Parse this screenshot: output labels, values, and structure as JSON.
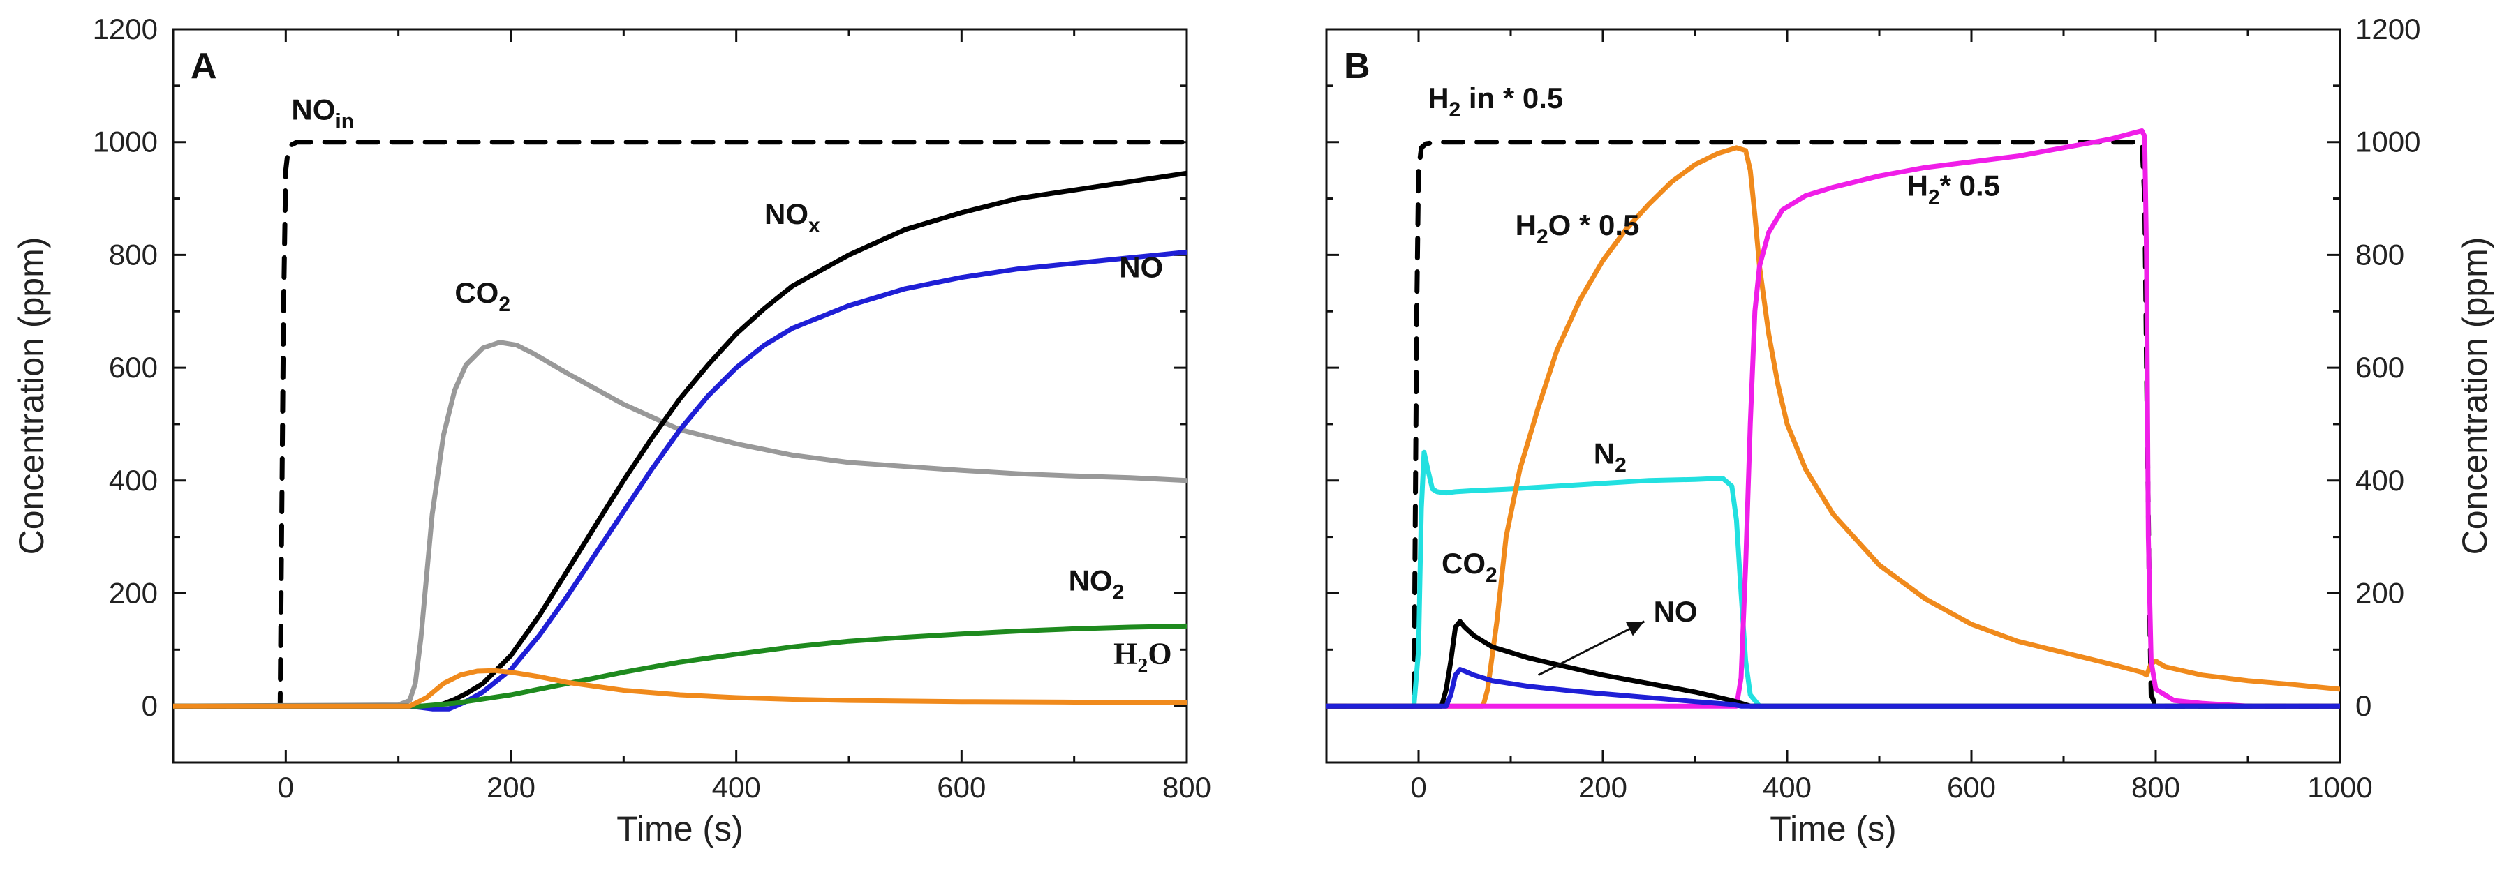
{
  "chart_data": [
    {
      "type": "line",
      "panel": "A",
      "xlabel": "Time (s)",
      "ylabel": "Concentration (ppm)",
      "xlim": [
        -100,
        800
      ],
      "ylim": [
        -100,
        1200
      ],
      "xticks": [
        0,
        200,
        400,
        600,
        800
      ],
      "yticks": [
        0,
        200,
        400,
        600,
        800,
        1000,
        1200
      ],
      "ylabel_side": "left",
      "series": [
        {
          "name": "NO_in",
          "color": "#000000",
          "dashed": true,
          "x": [
            -100,
            -5,
            -2,
            0,
            2,
            5,
            10,
            20,
            50,
            800
          ],
          "y": [
            0,
            0,
            700,
            950,
            985,
            995,
            1000,
            1000,
            1000,
            1000
          ]
        },
        {
          "name": "CO2",
          "color": "#999999",
          "dashed": false,
          "x": [
            -100,
            100,
            110,
            115,
            120,
            125,
            130,
            140,
            150,
            160,
            175,
            190,
            205,
            220,
            250,
            300,
            350,
            400,
            450,
            500,
            550,
            600,
            650,
            700,
            750,
            800
          ],
          "y": [
            0,
            2,
            10,
            40,
            120,
            230,
            340,
            480,
            560,
            605,
            635,
            645,
            640,
            625,
            590,
            535,
            490,
            465,
            445,
            432,
            425,
            418,
            412,
            408,
            405,
            400
          ]
        },
        {
          "name": "NOx",
          "color": "#000000",
          "dashed": false,
          "x": [
            -100,
            110,
            130,
            140,
            150,
            160,
            175,
            200,
            225,
            250,
            275,
            300,
            325,
            350,
            375,
            400,
            425,
            450,
            500,
            550,
            600,
            650,
            700,
            750,
            800
          ],
          "y": [
            0,
            0,
            0,
            4,
            12,
            22,
            40,
            90,
            160,
            240,
            320,
            400,
            475,
            545,
            605,
            660,
            705,
            745,
            800,
            845,
            875,
            900,
            915,
            930,
            945
          ]
        },
        {
          "name": "NO",
          "color": "#1f1fd6",
          "dashed": false,
          "x": [
            -100,
            110,
            130,
            145,
            160,
            175,
            200,
            225,
            250,
            275,
            300,
            325,
            350,
            375,
            400,
            425,
            450,
            500,
            550,
            600,
            650,
            700,
            750,
            800
          ],
          "y": [
            0,
            0,
            -5,
            -5,
            8,
            25,
            65,
            125,
            195,
            270,
            345,
            420,
            490,
            550,
            600,
            640,
            670,
            710,
            740,
            760,
            775,
            785,
            795,
            805
          ]
        },
        {
          "name": "NO2",
          "color": "#1e8a1e",
          "dashed": false,
          "x": [
            -100,
            120,
            150,
            200,
            250,
            300,
            350,
            400,
            450,
            500,
            550,
            600,
            650,
            700,
            750,
            800
          ],
          "y": [
            0,
            0,
            5,
            20,
            40,
            60,
            78,
            92,
            105,
            115,
            122,
            128,
            133,
            137,
            140,
            142
          ]
        },
        {
          "name": "H2O",
          "color": "#f08a1c",
          "dashed": false,
          "x": [
            -100,
            110,
            125,
            140,
            155,
            170,
            185,
            200,
            225,
            250,
            300,
            350,
            400,
            450,
            500,
            600,
            700,
            800
          ],
          "y": [
            0,
            0,
            15,
            40,
            55,
            62,
            63,
            60,
            52,
            42,
            28,
            20,
            15,
            12,
            10,
            8,
            7,
            6
          ]
        }
      ],
      "labels": [
        {
          "text": "NO",
          "sub": "in",
          "x": 5,
          "y": 1040
        },
        {
          "text": "CO",
          "sub": "2",
          "x": 150,
          "y": 715
        },
        {
          "text": "NO",
          "sub": "x",
          "x": 425,
          "y": 855
        },
        {
          "text": "NO",
          "sub": "",
          "x": 740,
          "y": 760
        },
        {
          "text": "NO",
          "sub": "2",
          "x": 695,
          "y": 205
        },
        {
          "text": "H",
          "sub": "2",
          "tail": "O",
          "x": 735,
          "y": 75
        }
      ]
    },
    {
      "type": "line",
      "panel": "B",
      "xlabel": "Time (s)",
      "ylabel": "Concentration (ppm)",
      "xlim": [
        -100,
        1000
      ],
      "ylim": [
        -100,
        1200
      ],
      "xticks": [
        0,
        200,
        400,
        600,
        800,
        1000
      ],
      "yticks": [
        0,
        200,
        400,
        600,
        800,
        1000,
        1200
      ],
      "ylabel_side": "right",
      "series": [
        {
          "name": "H2 in * 0.5",
          "color": "#000000",
          "dashed": true,
          "x": [
            -100,
            -5,
            -2,
            0,
            3,
            8,
            20,
            50,
            785,
            788,
            790,
            793,
            795,
            800,
            1000
          ],
          "y": [
            0,
            0,
            700,
            950,
            990,
            997,
            1000,
            1000,
            1000,
            900,
            600,
            200,
            20,
            0,
            0
          ]
        },
        {
          "name": "N2",
          "color": "#22e0e0",
          "dashed": false,
          "x": [
            -100,
            -5,
            0,
            3,
            6,
            10,
            15,
            20,
            30,
            40,
            60,
            100,
            150,
            200,
            250,
            300,
            330,
            340,
            345,
            350,
            355,
            360,
            370,
            400,
            1000
          ],
          "y": [
            0,
            0,
            100,
            350,
            450,
            420,
            385,
            380,
            378,
            380,
            382,
            385,
            390,
            395,
            400,
            402,
            404,
            390,
            330,
            200,
            80,
            20,
            0,
            0,
            0
          ]
        },
        {
          "name": "H2O * 0.5",
          "color": "#f08a1c",
          "dashed": false,
          "x": [
            -100,
            70,
            75,
            85,
            95,
            110,
            130,
            150,
            175,
            200,
            225,
            250,
            275,
            300,
            325,
            345,
            355,
            360,
            365,
            370,
            380,
            390,
            400,
            420,
            450,
            500,
            550,
            600,
            650,
            700,
            750,
            785,
            790,
            795,
            800,
            810,
            850,
            900,
            950,
            1000
          ],
          "y": [
            0,
            0,
            30,
            150,
            300,
            420,
            530,
            630,
            720,
            790,
            845,
            890,
            930,
            960,
            980,
            990,
            985,
            950,
            870,
            780,
            660,
            570,
            500,
            420,
            340,
            250,
            190,
            145,
            115,
            95,
            75,
            60,
            55,
            75,
            80,
            70,
            55,
            45,
            38,
            30
          ]
        },
        {
          "name": "H2 * 0.5",
          "color": "#f01ee8",
          "dashed": false,
          "x": [
            -100,
            345,
            350,
            355,
            360,
            365,
            370,
            380,
            395,
            420,
            450,
            500,
            550,
            600,
            650,
            700,
            750,
            785,
            788,
            790,
            792,
            795,
            800,
            820,
            850,
            900,
            1000
          ],
          "y": [
            0,
            0,
            50,
            250,
            500,
            700,
            780,
            840,
            880,
            905,
            920,
            940,
            955,
            965,
            975,
            990,
            1005,
            1020,
            1010,
            800,
            300,
            80,
            30,
            10,
            5,
            0,
            0
          ]
        },
        {
          "name": "CO2",
          "color": "#000000",
          "dashed": false,
          "x": [
            -100,
            25,
            30,
            35,
            40,
            45,
            50,
            60,
            80,
            120,
            160,
            200,
            250,
            300,
            340,
            350,
            360,
            1000
          ],
          "y": [
            0,
            0,
            30,
            80,
            140,
            150,
            140,
            125,
            105,
            85,
            70,
            55,
            40,
            25,
            10,
            5,
            0,
            0
          ]
        },
        {
          "name": "NO",
          "color": "#1f1fd6",
          "dashed": false,
          "x": [
            -100,
            30,
            35,
            40,
            45,
            50,
            60,
            80,
            120,
            160,
            200,
            250,
            300,
            340,
            350,
            1000
          ],
          "y": [
            0,
            0,
            20,
            55,
            65,
            62,
            55,
            45,
            35,
            28,
            22,
            15,
            8,
            3,
            0,
            0
          ]
        }
      ],
      "labels": [
        {
          "text": "H",
          "sub": "2",
          "tail": " in * 0.5",
          "x": 10,
          "y": 1060
        },
        {
          "text": "H",
          "sub": "2",
          "tail": "O * 0.5",
          "x": 105,
          "y": 835
        },
        {
          "text": "H",
          "sub": "2",
          "tail": "* 0.5",
          "x": 530,
          "y": 905
        },
        {
          "text": "N",
          "sub": "2",
          "x": 190,
          "y": 430
        },
        {
          "text": "CO",
          "sub": "2",
          "x": 25,
          "y": 235
        },
        {
          "text": "NO",
          "sub": "",
          "x": 255,
          "y": 150
        }
      ],
      "arrow": {
        "from": [
          130,
          55
        ],
        "to": [
          245,
          150
        ]
      }
    }
  ]
}
